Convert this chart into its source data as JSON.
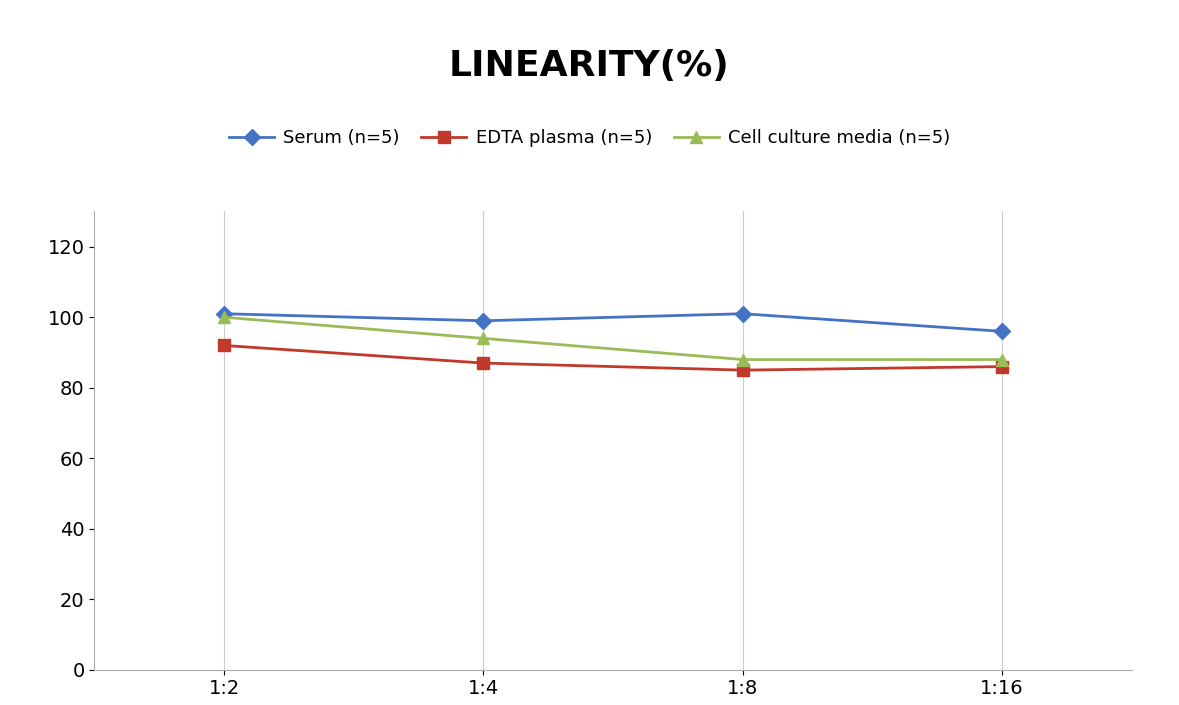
{
  "title": "LINEARITY(%)",
  "x_labels": [
    "1:2",
    "1:4",
    "1:8",
    "1:16"
  ],
  "x_positions": [
    0,
    1,
    2,
    3
  ],
  "series": [
    {
      "label": "Serum (n=5)",
      "values": [
        101,
        99,
        101,
        96
      ],
      "color": "#4472C4",
      "marker": "D",
      "markersize": 8,
      "linewidth": 2
    },
    {
      "label": "EDTA plasma (n=5)",
      "values": [
        92,
        87,
        85,
        86
      ],
      "color": "#C0392B",
      "marker": "s",
      "markersize": 8,
      "linewidth": 2
    },
    {
      "label": "Cell culture media (n=5)",
      "values": [
        100,
        94,
        88,
        88
      ],
      "color": "#9BBB59",
      "marker": "^",
      "markersize": 9,
      "linewidth": 2
    }
  ],
  "ylim": [
    0,
    130
  ],
  "yticks": [
    0,
    20,
    40,
    60,
    80,
    100,
    120
  ],
  "title_fontsize": 26,
  "legend_fontsize": 13,
  "tick_fontsize": 14,
  "background_color": "#FFFFFF",
  "grid_color": "#CCCCCC"
}
